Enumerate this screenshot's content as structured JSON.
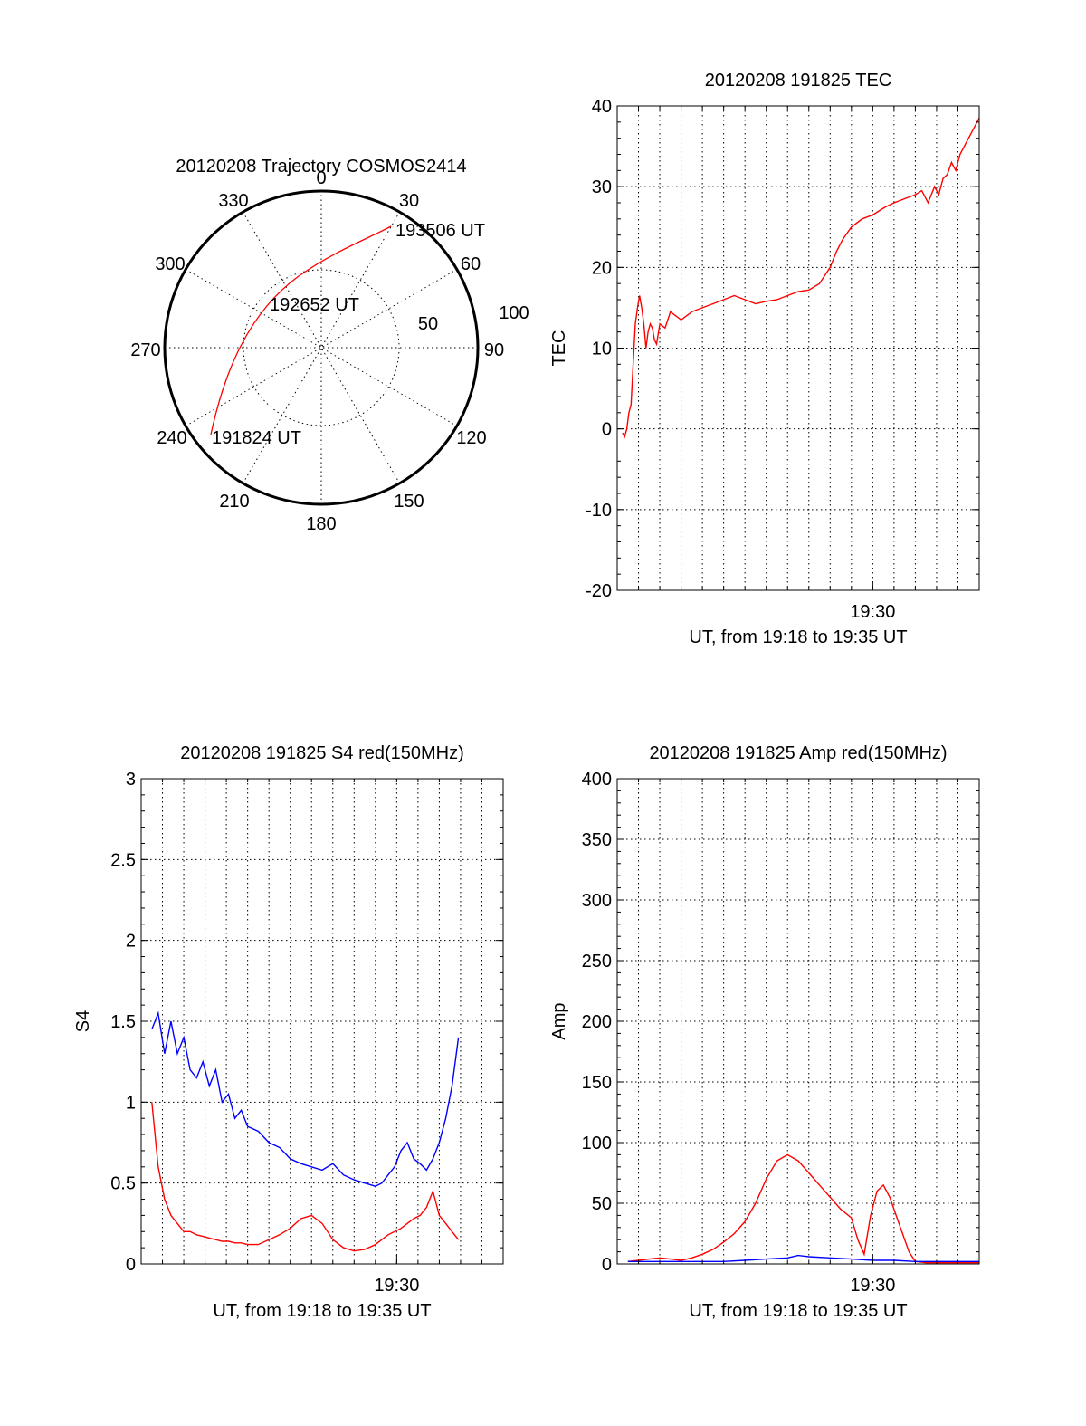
{
  "chart_data": [
    {
      "type": "polar-trajectory",
      "title": "20120208 Trajectory COSMOS2414",
      "angle_labels": [
        "0",
        "30",
        "60",
        "90",
        "120",
        "150",
        "180",
        "210",
        "240",
        "270",
        "300",
        "330"
      ],
      "radius_labels": [
        "50",
        "100"
      ],
      "annotations": [
        "193506 UT",
        "192652 UT",
        "191824 UT"
      ],
      "series_color": "#ff0000"
    },
    {
      "type": "line",
      "title": "20120208 191825 TEC",
      "xlabel": "UT, from 19:18 to 19:35 UT",
      "ylabel": "TEC",
      "xlim_minutes": [
        18,
        35
      ],
      "x_tick_label": "19:30",
      "x_tick_minute": 30,
      "ylim": [
        -20,
        40
      ],
      "yticks": [
        -20,
        -10,
        0,
        10,
        20,
        30,
        40
      ],
      "grid": true,
      "series": [
        {
          "color": "#ff0000",
          "x": [
            18.25,
            18.35,
            18.45,
            18.55,
            18.65,
            18.75,
            18.85,
            18.95,
            19.05,
            19.15,
            19.25,
            19.35,
            19.45,
            19.55,
            19.65,
            19.75,
            19.85,
            20.0,
            20.25,
            20.5,
            21.0,
            21.5,
            22.0,
            22.5,
            23.0,
            23.5,
            24.0,
            24.5,
            25.0,
            25.5,
            26.0,
            26.5,
            27.0,
            27.5,
            28.0,
            28.3,
            28.6,
            29.0,
            29.5,
            30.0,
            30.3,
            30.6,
            31.0,
            31.5,
            32.0,
            32.3,
            32.6,
            32.9,
            33.1,
            33.3,
            33.5,
            33.7,
            33.9,
            34.1,
            34.3,
            34.5,
            34.7,
            34.9,
            35.0
          ],
          "y": [
            -0.5,
            -1,
            0,
            2,
            3,
            8,
            13,
            15,
            16.5,
            15,
            13,
            10,
            12,
            13,
            12.5,
            11,
            10.5,
            13,
            12.5,
            14.5,
            13.5,
            14.5,
            15,
            15.5,
            16,
            16.5,
            16,
            15.5,
            15.8,
            16,
            16.5,
            17,
            17.2,
            18,
            20,
            22,
            23.5,
            25,
            26,
            26.5,
            27,
            27.5,
            28,
            28.5,
            29,
            29.5,
            28,
            30,
            29,
            31,
            31.5,
            33,
            32,
            34,
            35,
            36,
            37,
            38,
            38.5
          ]
        }
      ]
    },
    {
      "type": "line",
      "title": "20120208 191825 S4 red(150MHz)",
      "xlabel": "UT, from 19:18 to 19:35 UT",
      "ylabel": "S4",
      "xlim_minutes": [
        18,
        35
      ],
      "x_tick_label": "19:30",
      "x_tick_minute": 30,
      "ylim": [
        0,
        3
      ],
      "yticks": [
        "0",
        "0.5",
        "1",
        "1.5",
        "2",
        "2.5",
        "3"
      ],
      "grid": true,
      "series": [
        {
          "color": "#0000ff",
          "x": [
            18.5,
            18.8,
            19.1,
            19.4,
            19.7,
            20.0,
            20.3,
            20.6,
            20.9,
            21.2,
            21.5,
            21.8,
            22.1,
            22.4,
            22.7,
            23.0,
            23.5,
            24.0,
            24.5,
            25.0,
            25.5,
            26.0,
            26.5,
            27.0,
            27.5,
            28.0,
            28.5,
            29.0,
            29.3,
            29.6,
            29.9,
            30.2,
            30.5,
            30.8,
            31.1,
            31.4,
            31.7,
            32.0,
            32.3,
            32.6,
            32.9
          ],
          "y": [
            1.45,
            1.55,
            1.3,
            1.5,
            1.3,
            1.4,
            1.2,
            1.15,
            1.25,
            1.1,
            1.2,
            1.0,
            1.05,
            0.9,
            0.95,
            0.85,
            0.82,
            0.75,
            0.72,
            0.65,
            0.62,
            0.6,
            0.58,
            0.62,
            0.55,
            0.52,
            0.5,
            0.48,
            0.5,
            0.55,
            0.6,
            0.7,
            0.75,
            0.65,
            0.62,
            0.58,
            0.65,
            0.75,
            0.9,
            1.1,
            1.4
          ]
        },
        {
          "color": "#ff0000",
          "x": [
            18.5,
            18.8,
            19.1,
            19.4,
            19.7,
            20.0,
            20.3,
            20.6,
            20.9,
            21.2,
            21.5,
            21.8,
            22.1,
            22.4,
            22.7,
            23.0,
            23.5,
            24.0,
            24.5,
            25.0,
            25.5,
            26.0,
            26.5,
            27.0,
            27.5,
            28.0,
            28.5,
            29.0,
            29.3,
            29.6,
            29.9,
            30.2,
            30.5,
            30.8,
            31.1,
            31.4,
            31.7,
            32.0,
            32.3,
            32.6,
            32.9
          ],
          "y": [
            1.0,
            0.6,
            0.4,
            0.3,
            0.25,
            0.2,
            0.2,
            0.18,
            0.17,
            0.16,
            0.15,
            0.14,
            0.14,
            0.13,
            0.13,
            0.12,
            0.12,
            0.15,
            0.18,
            0.22,
            0.28,
            0.3,
            0.25,
            0.15,
            0.1,
            0.08,
            0.09,
            0.12,
            0.15,
            0.18,
            0.2,
            0.22,
            0.25,
            0.28,
            0.3,
            0.35,
            0.45,
            0.3,
            0.25,
            0.2,
            0.15
          ]
        }
      ]
    },
    {
      "type": "line",
      "title": "20120208 191825 Amp red(150MHz)",
      "xlabel": "UT, from 19:18 to 19:35 UT",
      "ylabel": "Amp",
      "xlim_minutes": [
        18,
        35
      ],
      "x_tick_label": "19:30",
      "x_tick_minute": 30,
      "ylim": [
        0,
        400
      ],
      "yticks": [
        "0",
        "50",
        "100",
        "150",
        "200",
        "250",
        "300",
        "350",
        "400"
      ],
      "grid": true,
      "series": [
        {
          "color": "#ff0000",
          "x": [
            18.5,
            19.0,
            19.5,
            20.0,
            20.5,
            21.0,
            21.5,
            22.0,
            22.5,
            23.0,
            23.5,
            24.0,
            24.5,
            25.0,
            25.5,
            26.0,
            26.5,
            27.0,
            27.5,
            28.0,
            28.5,
            29.0,
            29.3,
            29.6,
            29.9,
            30.2,
            30.5,
            30.8,
            31.1,
            31.4,
            31.7,
            32.0,
            32.5,
            33.0,
            33.5,
            34.0,
            34.5,
            35.0
          ],
          "y": [
            2,
            3,
            4,
            5,
            4,
            3,
            5,
            8,
            12,
            18,
            25,
            35,
            50,
            70,
            85,
            90,
            85,
            75,
            65,
            55,
            45,
            38,
            20,
            8,
            40,
            60,
            65,
            55,
            40,
            25,
            10,
            2,
            1,
            1,
            1,
            1,
            1,
            1
          ]
        },
        {
          "color": "#0000ff",
          "x": [
            18.5,
            19.0,
            20.0,
            21.0,
            22.0,
            23.0,
            24.0,
            25.0,
            26.0,
            26.5,
            27.0,
            28.0,
            29.0,
            30.0,
            31.0,
            32.0,
            33.0,
            34.0,
            35.0
          ],
          "y": [
            2,
            2,
            2,
            2,
            2,
            2,
            3,
            4,
            5,
            7,
            6,
            5,
            4,
            3,
            3,
            2,
            2,
            2,
            2
          ]
        }
      ]
    }
  ]
}
